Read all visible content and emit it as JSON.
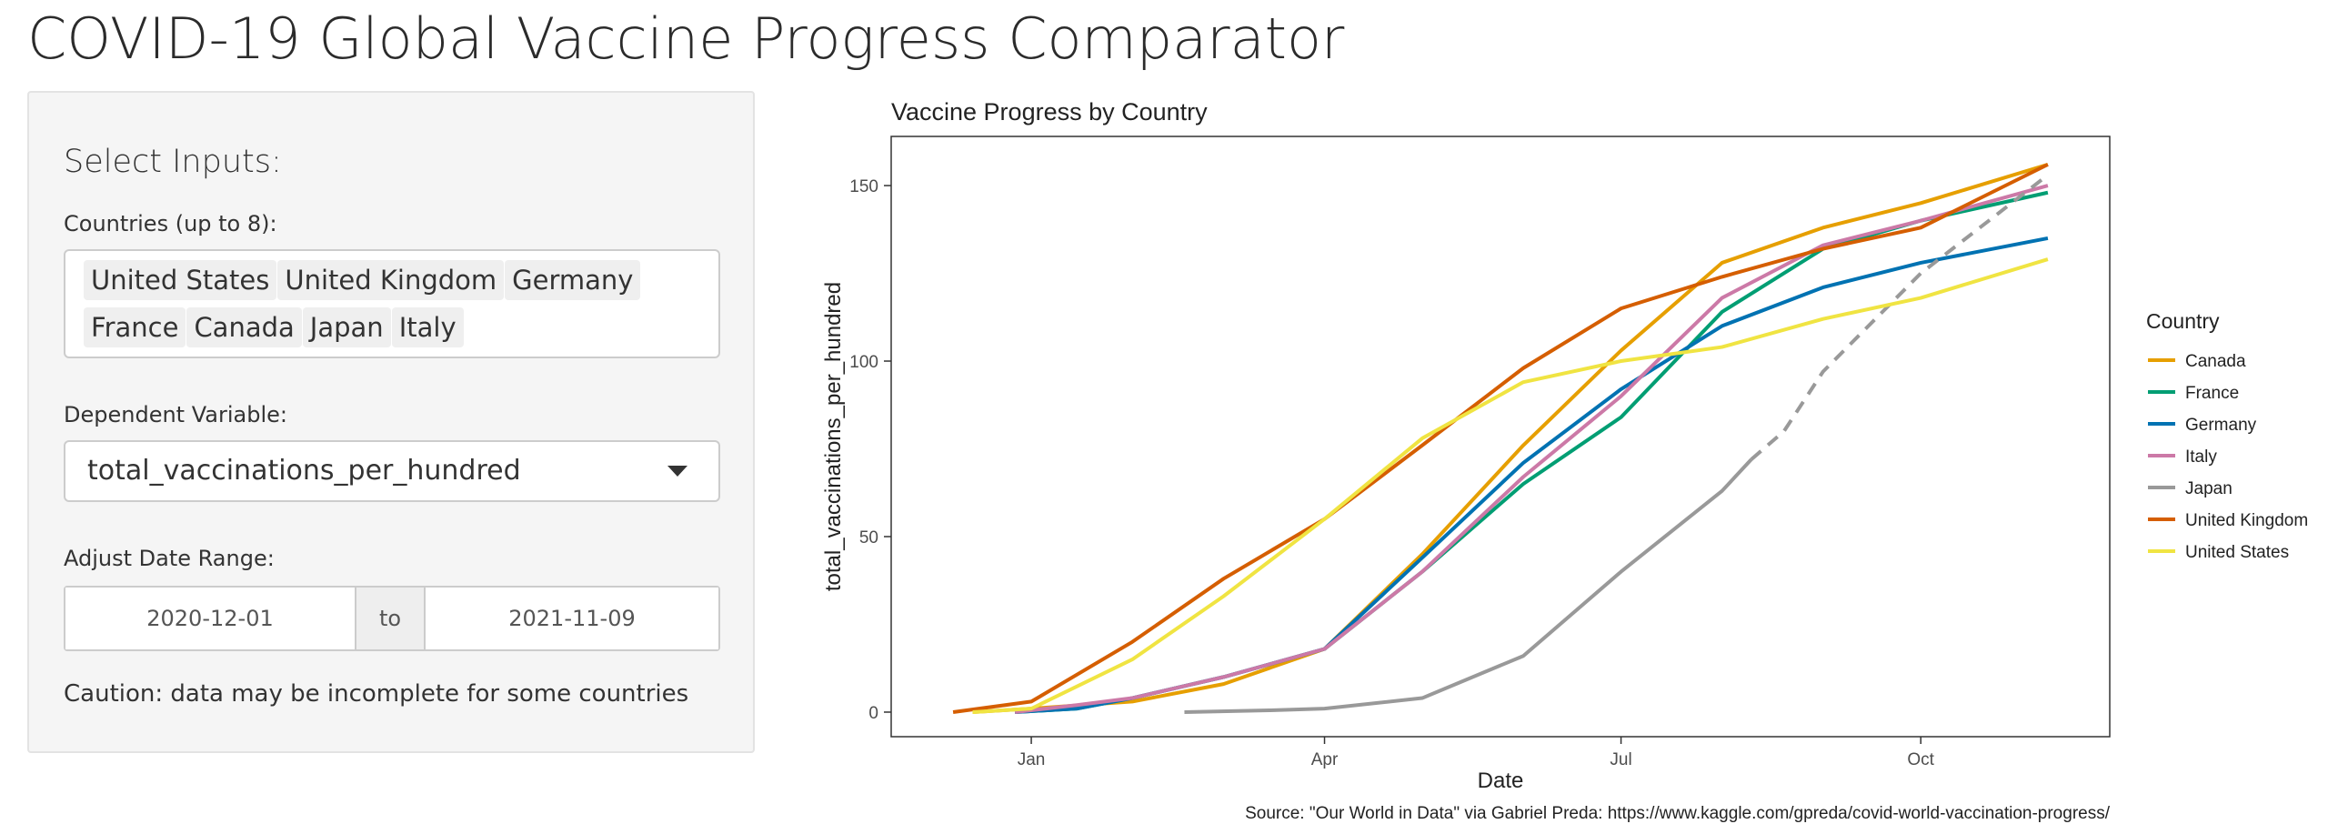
{
  "page": {
    "title": "COVID-19 Global Vaccine Progress Comparator"
  },
  "inputs": {
    "heading": "Select Inputs:",
    "countries_label": "Countries (up to 8):",
    "countries": [
      "United States",
      "United Kingdom",
      "Germany",
      "France",
      "Canada",
      "Japan",
      "Italy"
    ],
    "dependent_label": "Dependent Variable:",
    "dependent_value": "total_vaccinations_per_hundred",
    "date_label": "Adjust Date Range:",
    "date_start": "2020-12-01",
    "date_sep": "to",
    "date_end": "2021-11-09",
    "caution": "Caution: data may be incomplete for some countries"
  },
  "chart_data": {
    "type": "line",
    "title": "Vaccine Progress by Country",
    "xlabel": "Date",
    "ylabel": "total_vaccinations_per_hundred",
    "xlim": [
      "2020-11-19",
      "2021-11-28"
    ],
    "ylim": [
      -7,
      164
    ],
    "x_ticks": [
      {
        "date": "2021-01-01",
        "label": "Jan"
      },
      {
        "date": "2021-04-01",
        "label": "Apr"
      },
      {
        "date": "2021-07-01",
        "label": "Jul"
      },
      {
        "date": "2021-10-01",
        "label": "Oct"
      }
    ],
    "y_ticks": [
      0,
      50,
      100,
      150
    ],
    "grid": false,
    "legend_title": "Country",
    "legend_position": "right",
    "source": "Source: \"Our World in Data\" via Gabriel Preda: https://www.kaggle.com/gpreda/covid-world-vaccination-progress/",
    "series": [
      {
        "name": "Canada",
        "color": "#E69F00",
        "points": [
          [
            "2020-12-14",
            0
          ],
          [
            "2021-01-01",
            1
          ],
          [
            "2021-02-01",
            3
          ],
          [
            "2021-03-01",
            8
          ],
          [
            "2021-04-01",
            18
          ],
          [
            "2021-05-01",
            45
          ],
          [
            "2021-06-01",
            76
          ],
          [
            "2021-07-01",
            103
          ],
          [
            "2021-08-01",
            128
          ],
          [
            "2021-09-01",
            138
          ],
          [
            "2021-10-01",
            145
          ],
          [
            "2021-11-09",
            156
          ]
        ]
      },
      {
        "name": "France",
        "color": "#009E73",
        "points": [
          [
            "2020-12-27",
            0
          ],
          [
            "2021-01-15",
            1
          ],
          [
            "2021-02-01",
            4
          ],
          [
            "2021-03-01",
            10
          ],
          [
            "2021-04-01",
            18
          ],
          [
            "2021-05-01",
            40
          ],
          [
            "2021-06-01",
            65
          ],
          [
            "2021-07-01",
            84
          ],
          [
            "2021-08-01",
            114
          ],
          [
            "2021-09-01",
            132
          ],
          [
            "2021-10-01",
            140
          ],
          [
            "2021-11-09",
            148
          ]
        ]
      },
      {
        "name": "Germany",
        "color": "#0072B2",
        "points": [
          [
            "2020-12-27",
            0
          ],
          [
            "2021-01-15",
            1
          ],
          [
            "2021-02-01",
            4
          ],
          [
            "2021-03-01",
            10
          ],
          [
            "2021-04-01",
            18
          ],
          [
            "2021-05-01",
            44
          ],
          [
            "2021-06-01",
            71
          ],
          [
            "2021-07-01",
            92
          ],
          [
            "2021-08-01",
            110
          ],
          [
            "2021-09-01",
            121
          ],
          [
            "2021-10-01",
            128
          ],
          [
            "2021-11-09",
            135
          ]
        ]
      },
      {
        "name": "Italy",
        "color": "#CC79A7",
        "points": [
          [
            "2020-12-27",
            0
          ],
          [
            "2021-01-15",
            2
          ],
          [
            "2021-02-01",
            4
          ],
          [
            "2021-03-01",
            10
          ],
          [
            "2021-04-01",
            18
          ],
          [
            "2021-05-01",
            40
          ],
          [
            "2021-06-01",
            67
          ],
          [
            "2021-07-01",
            90
          ],
          [
            "2021-08-01",
            118
          ],
          [
            "2021-09-01",
            133
          ],
          [
            "2021-10-01",
            140
          ],
          [
            "2021-11-09",
            150
          ]
        ]
      },
      {
        "name": "Japan",
        "color": "#999999",
        "dashed_before": "2021-08-15",
        "points": [
          [
            "2021-02-17",
            0
          ],
          [
            "2021-03-15",
            0.5
          ],
          [
            "2021-04-01",
            1
          ],
          [
            "2021-05-01",
            4
          ],
          [
            "2021-06-01",
            16
          ],
          [
            "2021-07-01",
            40
          ],
          [
            "2021-08-01",
            63
          ],
          [
            "2021-08-10",
            72
          ],
          [
            "2021-08-20",
            80
          ],
          [
            "2021-09-01",
            97
          ],
          [
            "2021-10-01",
            125
          ],
          [
            "2021-11-09",
            153
          ]
        ]
      },
      {
        "name": "United Kingdom",
        "color": "#D55E00",
        "points": [
          [
            "2020-12-08",
            0
          ],
          [
            "2021-01-01",
            3
          ],
          [
            "2021-02-01",
            20
          ],
          [
            "2021-03-01",
            38
          ],
          [
            "2021-04-01",
            55
          ],
          [
            "2021-05-01",
            76
          ],
          [
            "2021-06-01",
            98
          ],
          [
            "2021-07-01",
            115
          ],
          [
            "2021-08-01",
            124
          ],
          [
            "2021-09-01",
            132
          ],
          [
            "2021-10-01",
            138
          ],
          [
            "2021-11-09",
            156
          ]
        ]
      },
      {
        "name": "United States",
        "color": "#F0E442",
        "points": [
          [
            "2020-12-14",
            0
          ],
          [
            "2021-01-01",
            1
          ],
          [
            "2021-02-01",
            15
          ],
          [
            "2021-03-01",
            33
          ],
          [
            "2021-04-01",
            55
          ],
          [
            "2021-05-01",
            78
          ],
          [
            "2021-06-01",
            94
          ],
          [
            "2021-07-01",
            100
          ],
          [
            "2021-08-01",
            104
          ],
          [
            "2021-09-01",
            112
          ],
          [
            "2021-10-01",
            118
          ],
          [
            "2021-11-09",
            129
          ]
        ]
      }
    ]
  }
}
